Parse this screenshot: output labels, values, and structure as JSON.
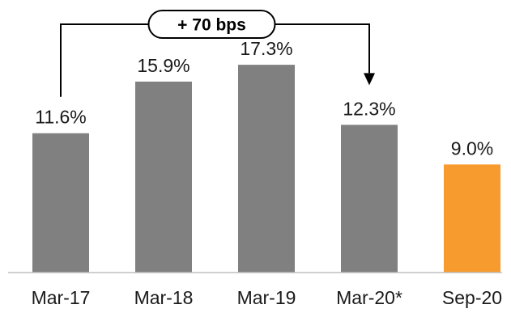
{
  "chart_data": {
    "type": "bar",
    "title": "",
    "xlabel": "",
    "ylabel": "",
    "ylim": [
      0,
      20
    ],
    "grid": false,
    "categories": [
      "Mar-17",
      "Mar-18",
      "Mar-19",
      "Mar-20*",
      "Sep-20"
    ],
    "values": [
      11.6,
      15.9,
      17.3,
      12.3,
      9.0
    ],
    "value_labels": [
      "11.6%",
      "15.9%",
      "17.3%",
      "12.3%",
      "9.0%"
    ],
    "colors": [
      "#808080",
      "#808080",
      "#808080",
      "#808080",
      "#F79B2E"
    ],
    "annotation": {
      "text": "+ 70 bps",
      "from_category": "Mar-17",
      "to_category": "Mar-20*"
    }
  }
}
